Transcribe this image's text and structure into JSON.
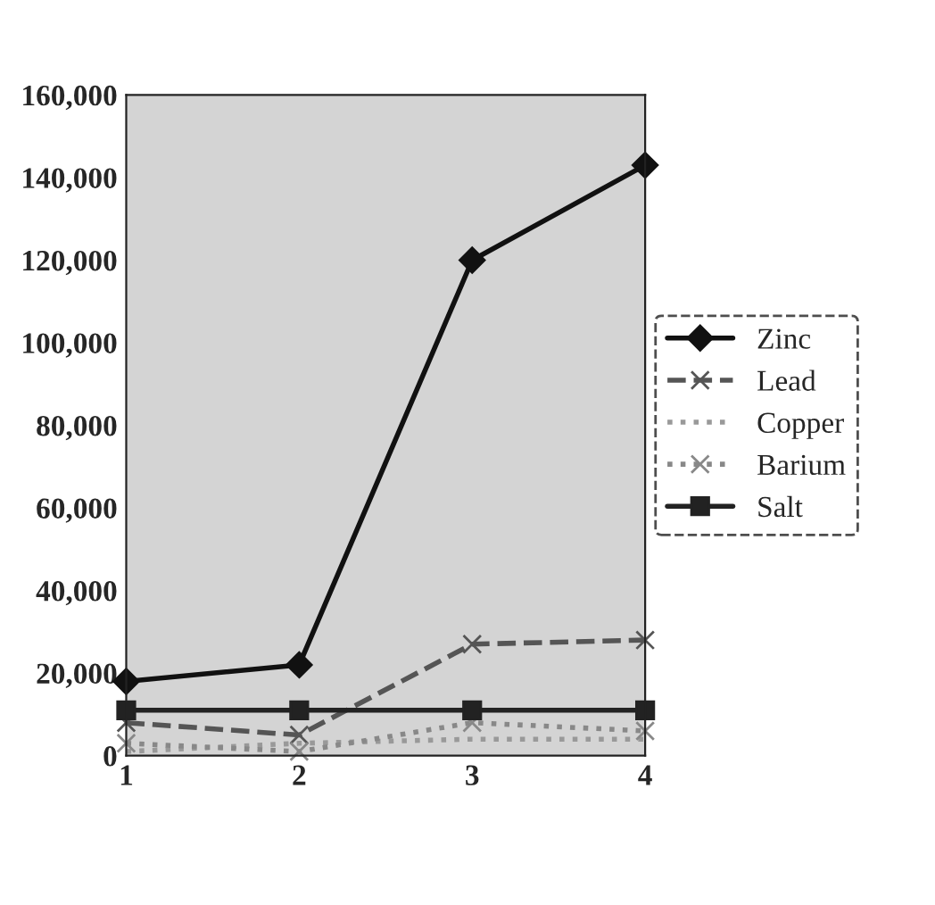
{
  "chart_data": {
    "type": "line",
    "x": [
      1,
      2,
      3,
      4
    ],
    "series": [
      {
        "name": "Zinc",
        "color": "#111111",
        "values": [
          18000,
          22000,
          120000,
          143000
        ],
        "marker": "diamond",
        "line_style": "solid"
      },
      {
        "name": "Lead",
        "color": "#555555",
        "values": [
          8000,
          5000,
          27000,
          28000
        ],
        "marker": "cross",
        "line_style": "dashed"
      },
      {
        "name": "Copper",
        "color": "#999999",
        "values": [
          1000,
          3000,
          4000,
          4000
        ],
        "marker": "none",
        "line_style": "dotted"
      },
      {
        "name": "Barium",
        "color": "#888888",
        "values": [
          3000,
          1000,
          8000,
          6000
        ],
        "marker": "cross",
        "line_style": "dotted"
      },
      {
        "name": "Salt",
        "color": "#222222",
        "values": [
          11000,
          11000,
          11000,
          11000
        ],
        "marker": "square",
        "line_style": "solid"
      }
    ],
    "xlim": [
      1,
      4
    ],
    "xticks": [
      1,
      2,
      3,
      4
    ],
    "ylim": [
      0,
      160000
    ],
    "yticks": [
      {
        "value": 0,
        "label": "0"
      },
      {
        "value": 20000,
        "label": "20,000"
      },
      {
        "value": 40000,
        "label": "40,000"
      },
      {
        "value": 60000,
        "label": "60,000"
      },
      {
        "value": 80000,
        "label": "80,000"
      },
      {
        "value": 100000,
        "label": "100,000"
      },
      {
        "value": 120000,
        "label": "120,000"
      },
      {
        "value": 140000,
        "label": "140,000"
      },
      {
        "value": 160000,
        "label": "160,000"
      }
    ],
    "grid": false,
    "legend": "right"
  }
}
